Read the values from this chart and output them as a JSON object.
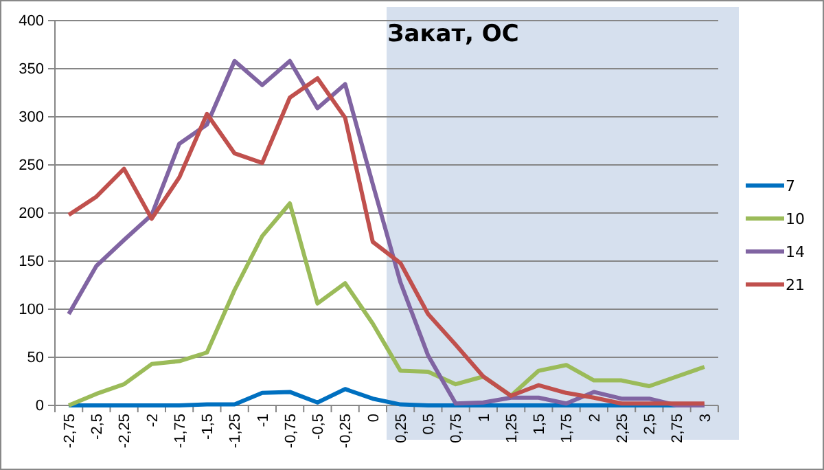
{
  "chart_data": {
    "type": "line",
    "title": "Закат, ОС",
    "categories": [
      "-2,75",
      "-2,5",
      "-2,25",
      "-2",
      "-1,75",
      "-1,5",
      "-1,25",
      "-1",
      "-0,75",
      "-0,5",
      "-0,25",
      "0",
      "0,25",
      "0,5",
      "0,75",
      "1",
      "1,25",
      "1,5",
      "1,75",
      "2",
      "2,25",
      "2,5",
      "2,75",
      "3"
    ],
    "series": [
      {
        "name": "7",
        "color": "#0070c0",
        "values": [
          0,
          0,
          0,
          0,
          0,
          1,
          1,
          13,
          14,
          3,
          17,
          7,
          1,
          0,
          0,
          0,
          0,
          0,
          0,
          0,
          0,
          0,
          0,
          0
        ]
      },
      {
        "name": "10",
        "color": "#9bbb59",
        "values": [
          0,
          12,
          22,
          43,
          46,
          55,
          120,
          176,
          210,
          106,
          127,
          85,
          36,
          35,
          22,
          30,
          10,
          36,
          42,
          26,
          26,
          20,
          30,
          40
        ]
      },
      {
        "name": "14",
        "color": "#8064a2",
        "values": [
          95,
          145,
          172,
          198,
          272,
          292,
          358,
          333,
          358,
          309,
          334,
          230,
          128,
          52,
          2,
          3,
          8,
          8,
          2,
          14,
          7,
          7,
          0,
          0
        ]
      },
      {
        "name": "21",
        "color": "#c0504d",
        "values": [
          198,
          217,
          246,
          194,
          237,
          303,
          262,
          252,
          320,
          340,
          299,
          170,
          148,
          95,
          63,
          30,
          10,
          21,
          13,
          8,
          2,
          2,
          2,
          2
        ]
      }
    ],
    "ylim": [
      0,
      400
    ],
    "yticks": [
      0,
      50,
      100,
      150,
      200,
      250,
      300,
      350,
      400
    ],
    "bands": [
      {
        "axis": "x",
        "from": "0,25",
        "to": "3",
        "color": "#d6e0ee"
      }
    ],
    "grid": "y",
    "legend": "right"
  }
}
